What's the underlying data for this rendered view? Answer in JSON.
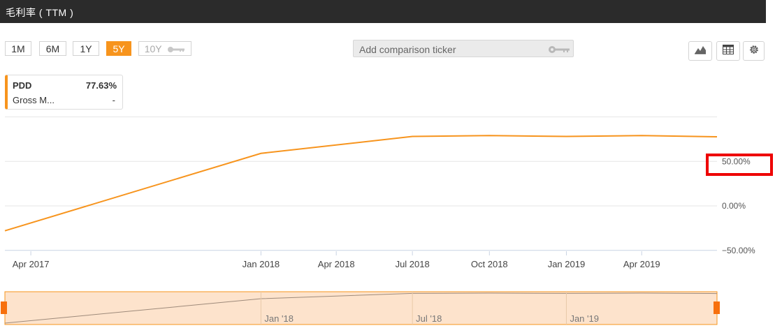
{
  "header": {
    "title": "毛利率 ( TTM )"
  },
  "ranges": [
    {
      "label": "1M",
      "active": false,
      "locked": false
    },
    {
      "label": "6M",
      "active": false,
      "locked": false
    },
    {
      "label": "1Y",
      "active": false,
      "locked": false
    },
    {
      "label": "5Y",
      "active": true,
      "locked": false
    },
    {
      "label": "10Y",
      "active": false,
      "locked": true
    }
  ],
  "compare": {
    "placeholder": "Add comparison ticker",
    "icon": "key-icon"
  },
  "tools": [
    {
      "name": "chart-type-button",
      "icon": "area-chart-icon"
    },
    {
      "name": "table-view-button",
      "icon": "table-icon"
    },
    {
      "name": "settings-button",
      "icon": "gear-icon"
    }
  ],
  "legend": {
    "ticker": "PDD",
    "value": "77.63%",
    "metric": "Gross M...",
    "metric_value": "-"
  },
  "colors": {
    "accent": "#f7941d",
    "header_bg": "#2b2b2b",
    "highlight": "#e00000",
    "navigator_fill": "#fde3cc"
  },
  "chart_data": {
    "type": "line",
    "series": [
      {
        "name": "PDD",
        "points": [
          [
            "2017-03-01",
            -28
          ],
          [
            "2018-01-01",
            59
          ],
          [
            "2018-07-01",
            78
          ],
          [
            "2018-10-01",
            79
          ],
          [
            "2019-01-01",
            78
          ],
          [
            "2019-04-01",
            79
          ],
          [
            "2019-06-30",
            77.6
          ]
        ]
      }
    ],
    "yticks": [
      "50.00%",
      "0.00%",
      "−50.00%"
    ],
    "ytick_values": [
      50,
      0,
      -50
    ],
    "xticks": [
      "Apr 2017",
      "Jan 2018",
      "Apr 2018",
      "Jul 2018",
      "Oct 2018",
      "Jan 2019",
      "Apr 2019"
    ],
    "xtick_dates": [
      "2017-04-01",
      "2018-01-01",
      "2018-04-01",
      "2018-07-01",
      "2018-10-01",
      "2019-01-01",
      "2019-04-01"
    ],
    "x_range": [
      "2017-03-01",
      "2019-06-30"
    ],
    "ylim": [
      -50,
      100
    ],
    "grid": true,
    "highlighted_tick": "50.00%",
    "navigator": {
      "labels": [
        "Jan '18",
        "Jul '18",
        "Jan '19"
      ],
      "label_dates": [
        "2018-01-01",
        "2018-07-01",
        "2019-01-01"
      ]
    }
  }
}
